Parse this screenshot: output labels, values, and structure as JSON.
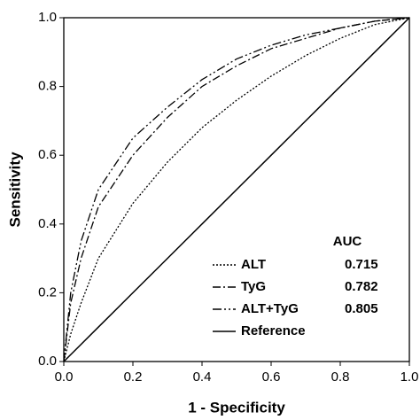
{
  "chart_data": {
    "type": "line",
    "xlabel": "1 - Specificity",
    "ylabel": "Sensitivity",
    "x": [
      0,
      0.02,
      0.05,
      0.1,
      0.2,
      0.3,
      0.4,
      0.5,
      0.6,
      0.7,
      0.8,
      0.9,
      1
    ],
    "series": [
      {
        "name": "ALT",
        "color": "#000000",
        "dash": "dotted",
        "auc": 0.715,
        "values": [
          0,
          0.08,
          0.17,
          0.3,
          0.46,
          0.58,
          0.68,
          0.76,
          0.83,
          0.89,
          0.94,
          0.98,
          1
        ]
      },
      {
        "name": "TyG",
        "color": "#000000",
        "dash": "dash-dot",
        "auc": 0.782,
        "values": [
          0,
          0.17,
          0.3,
          0.45,
          0.6,
          0.71,
          0.8,
          0.86,
          0.91,
          0.94,
          0.97,
          0.99,
          1
        ]
      },
      {
        "name": "ALT+TyG",
        "color": "#000000",
        "dash": "dash-dot-dot",
        "auc": 0.805,
        "values": [
          0,
          0.2,
          0.35,
          0.5,
          0.65,
          0.74,
          0.82,
          0.88,
          0.92,
          0.95,
          0.97,
          0.99,
          1
        ]
      },
      {
        "name": "Reference",
        "color": "#000000",
        "dash": "solid",
        "values": [
          0,
          0.02,
          0.05,
          0.1,
          0.2,
          0.3,
          0.4,
          0.5,
          0.6,
          0.7,
          0.8,
          0.9,
          1
        ]
      }
    ],
    "legend_title": "AUC",
    "xlim": [
      0,
      1
    ],
    "ylim": [
      0,
      1
    ],
    "xticks": [
      {
        "value": 0,
        "label": "0.0"
      },
      0.2,
      0.4,
      0.6,
      0.8,
      {
        "value": 1,
        "label": "1.0"
      }
    ],
    "yticks": [
      {
        "value": 0,
        "label": "0.0"
      },
      0.2,
      0.4,
      0.6,
      0.8,
      {
        "value": 1,
        "label": "1.0"
      }
    ]
  }
}
